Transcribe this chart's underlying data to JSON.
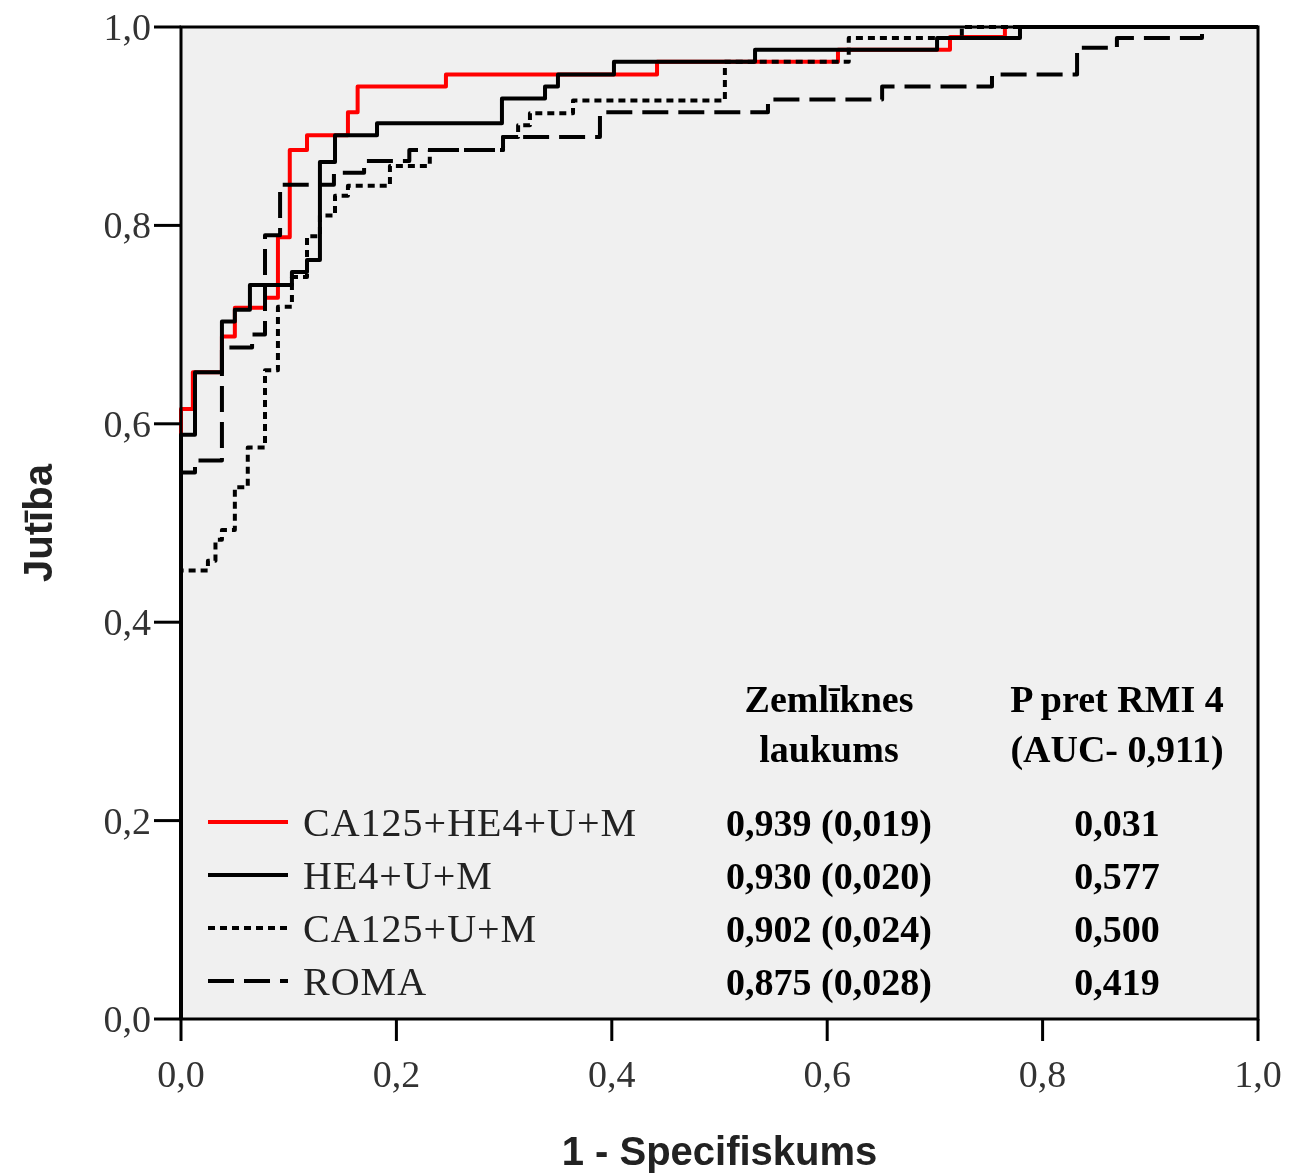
{
  "chart_data": {
    "type": "step",
    "xlabel": "1 - Specifiskums",
    "ylabel": "Jutība",
    "xlim": [
      0,
      1
    ],
    "ylim": [
      0,
      1
    ],
    "xticks": [
      {
        "value": 0,
        "label": "0,0"
      },
      {
        "value": 0.2,
        "label": "0,2"
      },
      {
        "value": 0.4,
        "label": "0,4"
      },
      {
        "value": 0.6,
        "label": "0,6"
      },
      {
        "value": 0.8,
        "label": "0,8"
      },
      {
        "value": 1,
        "label": "1,0"
      }
    ],
    "yticks": [
      {
        "value": 0,
        "label": "0,0"
      },
      {
        "value": 0.2,
        "label": "0,2"
      },
      {
        "value": 0.4,
        "label": "0,4"
      },
      {
        "value": 0.6,
        "label": "0,6"
      },
      {
        "value": 0.8,
        "label": "0,8"
      },
      {
        "value": 1,
        "label": "1,0"
      }
    ],
    "grid": false,
    "legend": "bottom left",
    "marker": "none",
    "series": [
      {
        "name": "CA125+HE4+U+M",
        "color": "#ff0000",
        "line_style": "solid",
        "x": [
          0,
          0,
          0.011,
          0.038,
          0.05,
          0.078,
          0.09,
          0.101,
          0.117,
          0.155,
          0.164,
          0.246,
          0.442,
          0.61,
          0.714,
          0.765
        ],
        "values": [
          0,
          0.615,
          0.652,
          0.688,
          0.717,
          0.727,
          0.788,
          0.876,
          0.891,
          0.914,
          0.94,
          0.952,
          0.965,
          0.977,
          0.99,
          1
        ]
      },
      {
        "name": "HE4+U+M",
        "color": "#000000",
        "line_style": "solid",
        "x": [
          0,
          0,
          0.013,
          0.038,
          0.05,
          0.064,
          0.103,
          0.117,
          0.129,
          0.143,
          0.182,
          0.298,
          0.338,
          0.35,
          0.402,
          0.533,
          0.702,
          0.779,
          1
        ],
        "values": [
          0,
          0.589,
          0.652,
          0.703,
          0.715,
          0.74,
          0.753,
          0.765,
          0.864,
          0.891,
          0.903,
          0.928,
          0.94,
          0.952,
          0.965,
          0.977,
          0.989,
          1,
          1
        ]
      },
      {
        "name": "CA125+U+M",
        "color": "#000000",
        "line_style": "dotted",
        "x": [
          0,
          0,
          0.025,
          0.032,
          0.038,
          0.05,
          0.062,
          0.078,
          0.09,
          0.103,
          0.117,
          0.129,
          0.143,
          0.155,
          0.194,
          0.231,
          0.299,
          0.313,
          0.324,
          0.364,
          0.505,
          0.62,
          0.725,
          1
        ],
        "values": [
          0,
          0.452,
          0.462,
          0.483,
          0.493,
          0.536,
          0.576,
          0.654,
          0.718,
          0.748,
          0.789,
          0.81,
          0.83,
          0.84,
          0.86,
          0.876,
          0.889,
          0.901,
          0.913,
          0.926,
          0.965,
          0.989,
          1,
          1
        ]
      },
      {
        "name": "ROMA",
        "color": "#000000",
        "line_style": "dashed",
        "x": [
          0,
          0,
          0.013,
          0.038,
          0.066,
          0.078,
          0.092,
          0.142,
          0.17,
          0.212,
          0.299,
          0.389,
          0.545,
          0.651,
          0.753,
          0.832,
          0.869,
          0.948,
          1
        ],
        "values": [
          0,
          0.551,
          0.563,
          0.677,
          0.69,
          0.79,
          0.841,
          0.853,
          0.865,
          0.876,
          0.889,
          0.914,
          0.927,
          0.94,
          0.952,
          0.979,
          0.989,
          1,
          1
        ]
      }
    ],
    "annotations": [
      "Zemlīknes laukums",
      "P pret RMI 4 (AUC- 0,911)",
      "0,939 (0,019)",
      "0,031",
      "0,930 (0,020)",
      "0,577",
      "0,902 (0,024)",
      "0,500",
      "0,875 (0,028)",
      "0,419"
    ]
  }
}
